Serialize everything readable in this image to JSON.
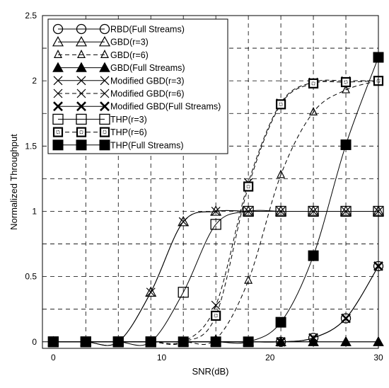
{
  "chart_data": {
    "type": "line",
    "title": "",
    "xlabel": "SNR(dB)",
    "ylabel": "Normalized Throughput",
    "xlim": [
      -1,
      30
    ],
    "ylim": [
      -0.05,
      2.5
    ],
    "xticks": [
      0,
      10,
      20,
      30
    ],
    "yticks": [
      0,
      0.5,
      1,
      1.5,
      2,
      2.5
    ],
    "xtick_labels": [
      "0",
      "10",
      "20",
      "30"
    ],
    "ytick_labels": [
      "0",
      "0.5",
      "1",
      "1.5",
      "2",
      "2.5"
    ],
    "grid": true,
    "grid_style": "dashed",
    "legend_position": "top-left",
    "x": [
      0,
      3,
      6,
      9,
      12,
      15,
      18,
      21,
      24,
      27,
      30
    ],
    "series": [
      {
        "name": "RBD(Full Streams)",
        "marker": "circle-open",
        "dash": "solid",
        "values": [
          0,
          0,
          0,
          0,
          0,
          0,
          0,
          0,
          0.03,
          0.18,
          0.58
        ]
      },
      {
        "name": "GBD(r=3)",
        "marker": "triangle-open",
        "dash": "solid",
        "values": [
          0,
          0,
          0,
          0.38,
          0.92,
          1.0,
          1.0,
          1.0,
          1.0,
          1.0,
          1.0
        ]
      },
      {
        "name": "GBD(r=6)",
        "marker": "triangle-open-small",
        "dash": "dashed",
        "values": [
          0,
          0,
          0,
          0,
          0,
          0.02,
          0.47,
          1.28,
          1.76,
          1.93,
          2.0
        ]
      },
      {
        "name": "GBD(Full Streams)",
        "marker": "triangle-filled",
        "dash": "solid",
        "values": [
          0,
          0,
          0,
          0,
          0,
          0,
          0,
          0,
          0,
          0,
          0
        ]
      },
      {
        "name": "Modified GBD(r=3)",
        "marker": "x-thin",
        "dash": "solid",
        "values": [
          0,
          0,
          0,
          0.38,
          0.92,
          1.0,
          1.0,
          1.0,
          1.0,
          1.0,
          1.0
        ]
      },
      {
        "name": "Modified GBD(r=6)",
        "marker": "x-thin",
        "dash": "dashed",
        "values": [
          0,
          0,
          0,
          0,
          0,
          0.28,
          1.22,
          1.83,
          1.99,
          2.0,
          2.0
        ]
      },
      {
        "name": "Modified GBD(Full Streams)",
        "marker": "x-thick",
        "dash": "solid",
        "values": [
          0,
          0,
          0,
          0,
          0,
          0,
          0,
          0,
          0.03,
          0.18,
          0.58
        ]
      },
      {
        "name": "THP(r=3)",
        "marker": "square-open",
        "dash": "solid",
        "values": [
          0,
          0,
          0,
          0,
          0.38,
          0.9,
          1.0,
          1.0,
          1.0,
          1.0,
          1.0
        ]
      },
      {
        "name": "THP(r=6)",
        "marker": "square-dotted",
        "dash": "dashed",
        "values": [
          0,
          0,
          0,
          0,
          0,
          0.2,
          1.19,
          1.82,
          1.98,
          1.99,
          2.0
        ]
      },
      {
        "name": "THP(Full Streams)",
        "marker": "square-filled",
        "dash": "solid",
        "values": [
          0,
          0,
          0,
          0,
          0,
          0,
          0,
          0.15,
          0.66,
          1.51,
          2.18
        ]
      }
    ]
  }
}
